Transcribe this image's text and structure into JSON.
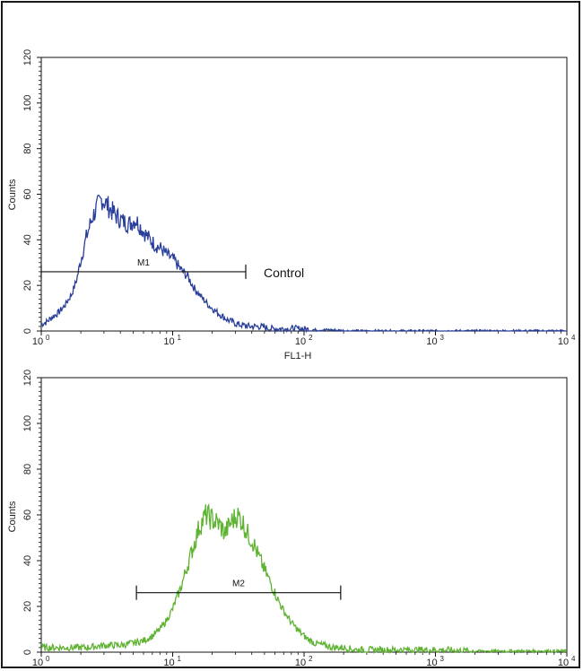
{
  "chart_data": [
    {
      "type": "area",
      "title": "",
      "xlabel": "FL1-H",
      "ylabel": "Counts",
      "x_scale": "log",
      "xlim": [
        1,
        10000
      ],
      "ylim": [
        0,
        120
      ],
      "y_ticks": [
        0,
        20,
        40,
        60,
        80,
        100,
        120
      ],
      "x_ticks": [
        {
          "value": 1,
          "base": "10",
          "exp": "0"
        },
        {
          "value": 10,
          "base": "10",
          "exp": "1"
        },
        {
          "value": 100,
          "base": "10",
          "exp": "2"
        },
        {
          "value": 1000,
          "base": "10",
          "exp": "3"
        },
        {
          "value": 10000,
          "base": "10",
          "exp": "4"
        }
      ],
      "grid": false,
      "color": "#2a3f9a",
      "series": [
        {
          "x": [
            1,
            1.1,
            1.2,
            1.35,
            1.5,
            1.7,
            1.85,
            2.0,
            2.2,
            2.45,
            2.7,
            2.9,
            3.1,
            3.4,
            3.8,
            4.2,
            4.7,
            5.2,
            5.8,
            6.5,
            7.3,
            8.2,
            9.2,
            10.3,
            11.5,
            13,
            14.5,
            16.5,
            19,
            22,
            26,
            31,
            38,
            46,
            56,
            70,
            90,
            120,
            160,
            220,
            400,
            1000,
            3000,
            10000
          ],
          "y": [
            3,
            4,
            6,
            8,
            11,
            16,
            22,
            31,
            41,
            50,
            55,
            58,
            56,
            53,
            50,
            48,
            47,
            49,
            45,
            41,
            38,
            36,
            33,
            31,
            27,
            24,
            19,
            15,
            11,
            8,
            5,
            3,
            2,
            2,
            1,
            1,
            1,
            0.5,
            0.5,
            0,
            0,
            0,
            0,
            0
          ]
        }
      ],
      "gates": [
        {
          "label": "M1",
          "x_start": 1,
          "x_end": 36,
          "y": 26
        }
      ],
      "annotations": [
        {
          "text": "Control"
        }
      ]
    },
    {
      "type": "area",
      "title": "",
      "xlabel": "",
      "ylabel": "Counts",
      "x_scale": "log",
      "xlim": [
        1,
        10000
      ],
      "ylim": [
        0,
        120
      ],
      "y_ticks": [
        0,
        20,
        40,
        60,
        80,
        100,
        120
      ],
      "x_ticks": [
        {
          "value": 1,
          "base": "10",
          "exp": "0"
        },
        {
          "value": 10,
          "base": "10",
          "exp": "1"
        },
        {
          "value": 100,
          "base": "10",
          "exp": "2"
        },
        {
          "value": 1000,
          "base": "10",
          "exp": "3"
        },
        {
          "value": 10000,
          "base": "10",
          "exp": "4"
        }
      ],
      "grid": false,
      "color": "#5fb332",
      "series": [
        {
          "x": [
            1,
            1.5,
            2.2,
            3.0,
            4.0,
            5.0,
            6.0,
            7.0,
            8.0,
            9.0,
            10,
            11.5,
            13,
            14.5,
            16,
            18,
            20,
            22.5,
            25,
            28,
            31,
            34,
            37,
            41,
            45,
            50,
            56,
            62,
            70,
            80,
            92,
            105,
            120,
            140,
            170,
            200,
            250,
            330,
            450,
            650,
            1000,
            2000,
            4000,
            10000
          ],
          "y": [
            2,
            2,
            2,
            3,
            3,
            4,
            5,
            7,
            10,
            14,
            19,
            28,
            38,
            47,
            55,
            60,
            58,
            56,
            52,
            57,
            60,
            57,
            52,
            48,
            42,
            36,
            30,
            24,
            18,
            13,
            9,
            6,
            4,
            3,
            2,
            2,
            1,
            1,
            1,
            1,
            1,
            0.5,
            0.5,
            0.5
          ]
        }
      ],
      "gates": [
        {
          "label": "M2",
          "x_start": 5.3,
          "x_end": 190,
          "y": 26
        }
      ]
    }
  ]
}
